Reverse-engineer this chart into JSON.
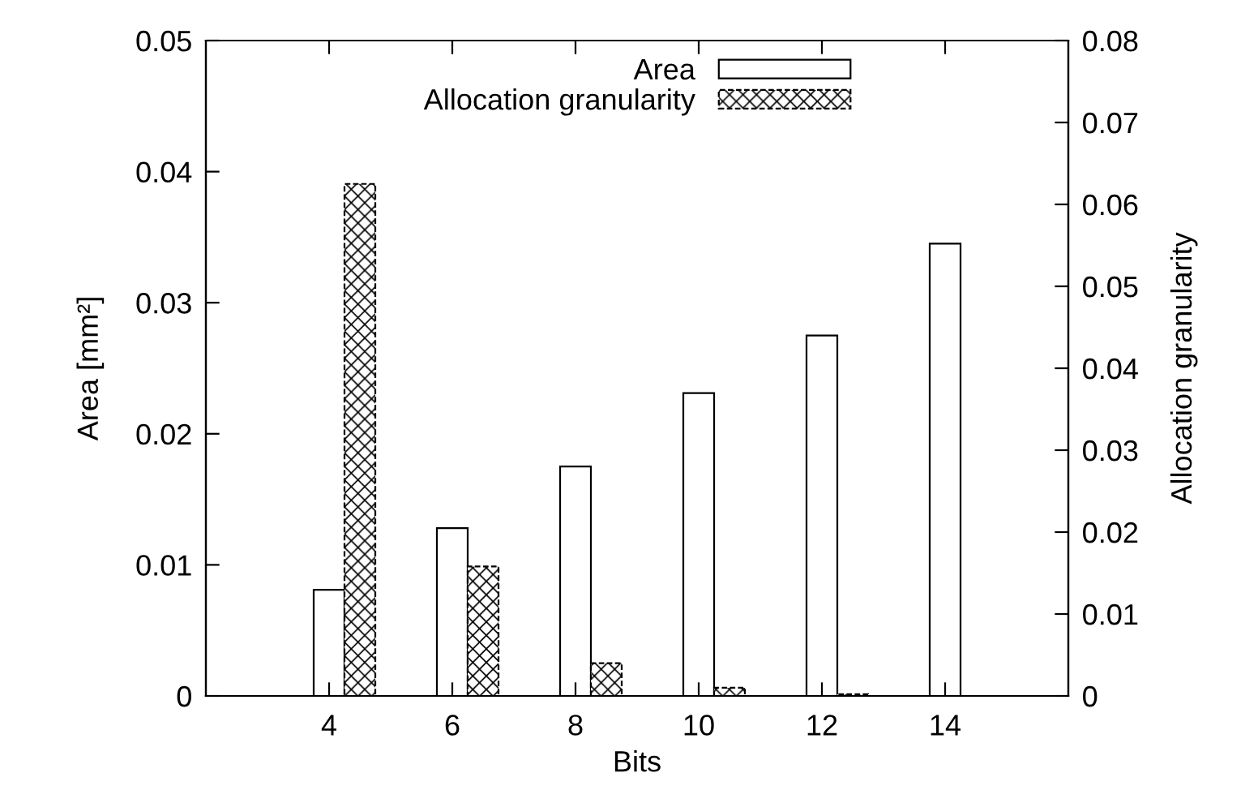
{
  "chart_data": {
    "type": "bar",
    "xlabel": "Bits",
    "ylabel": "Area [mm²]",
    "y2label": "Allocation granularity",
    "x": [
      4,
      6,
      8,
      10,
      12,
      14
    ],
    "series": [
      {
        "name": "Area",
        "color": "#000000",
        "values": [
          0.0081,
          0.0128,
          0.0175,
          0.0231,
          0.0275,
          0.0345
        ]
      },
      {
        "name": "Allocation granularity",
        "color": "#000000",
        "axis": "y2",
        "values": [
          0.0625,
          0.0158,
          0.004,
          0.001,
          0.0002,
          null
        ]
      }
    ],
    "xlim": [
      2,
      16
    ],
    "xticks": [
      4,
      6,
      8,
      10,
      12,
      14
    ],
    "ylim": [
      0,
      0.05
    ],
    "yticks": [
      0,
      0.01,
      0.02,
      0.03,
      0.04,
      0.05
    ],
    "y2lim": [
      0,
      0.08
    ],
    "y2ticks": [
      0,
      0.01,
      0.02,
      0.03,
      0.04,
      0.05,
      0.06,
      0.07,
      0.08
    ],
    "grid": false,
    "legend": "top"
  }
}
